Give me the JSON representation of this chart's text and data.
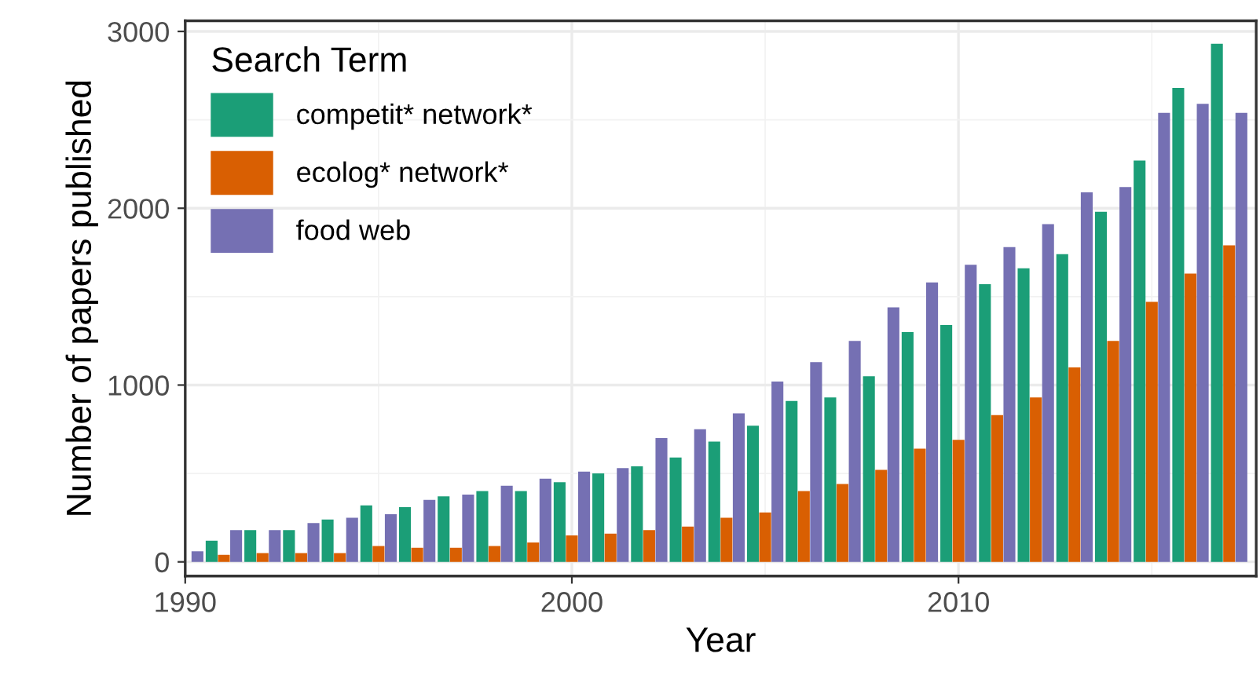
{
  "chart_data": {
    "type": "bar",
    "xlabel": "Year",
    "ylabel": "Number of papers published",
    "legend_title": "Search Term",
    "legend": "top left",
    "grid": true,
    "x": [
      1990,
      1991,
      1992,
      1993,
      1994,
      1995,
      1996,
      1997,
      1998,
      1999,
      2000,
      2001,
      2002,
      2003,
      2004,
      2005,
      2006,
      2007,
      2008,
      2009,
      2010,
      2011,
      2012,
      2013,
      2014,
      2015,
      2016,
      2017
    ],
    "series": [
      {
        "name": "competit* network*",
        "color": "#1b9e77",
        "values": [
          null,
          120,
          180,
          180,
          240,
          320,
          310,
          370,
          400,
          400,
          450,
          500,
          540,
          590,
          680,
          770,
          910,
          930,
          1050,
          1300,
          1340,
          1570,
          1660,
          1740,
          1980,
          2270,
          2680,
          2930
        ]
      },
      {
        "name": "ecolog* network*",
        "color": "#d95f02",
        "values": [
          null,
          40,
          50,
          50,
          50,
          90,
          80,
          80,
          90,
          110,
          150,
          160,
          180,
          200,
          250,
          280,
          400,
          440,
          520,
          640,
          690,
          830,
          930,
          1100,
          1250,
          1470,
          1630,
          1790
        ]
      },
      {
        "name": "food web",
        "color": "#7570b3",
        "values": [
          60,
          180,
          180,
          220,
          250,
          270,
          350,
          380,
          430,
          470,
          510,
          530,
          700,
          750,
          840,
          1020,
          1130,
          1250,
          1440,
          1580,
          1680,
          1780,
          1910,
          2090,
          2120,
          2540,
          2590,
          2540
        ]
      }
    ],
    "xlim": [
      1990,
      2017.7
    ],
    "ylim": [
      -80,
      3060
    ],
    "xticks": [
      1990,
      2000,
      2010
    ],
    "yticks": [
      0,
      1000,
      2000,
      3000
    ]
  }
}
